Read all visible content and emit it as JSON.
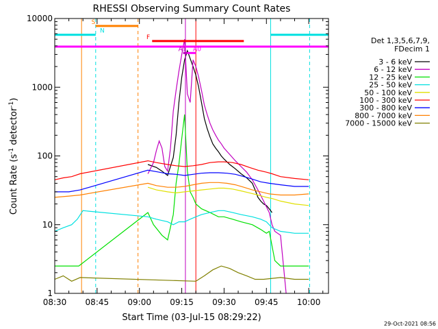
{
  "chart_data": {
    "type": "line",
    "title": "RHESSI Observing Summary Count Rates",
    "xlabel": "Start Time (03-Jul-15 08:29:22)",
    "ylabel_main": "Count Rate (s",
    "ylabel_sup1": "-1",
    "ylabel_mid": " detector",
    "ylabel_sup2": "-1",
    "ylabel_end": ")",
    "x_unit": "minutes after 08:30 UT",
    "xlim": [
      0,
      97
    ],
    "ylim": [
      1,
      10000
    ],
    "y_scale": "log",
    "x_ticks": [
      {
        "label": "08:30",
        "x": 0
      },
      {
        "label": "08:45",
        "x": 15
      },
      {
        "label": "09:00",
        "x": 30
      },
      {
        "label": "09:15",
        "x": 45
      },
      {
        "label": "09:30",
        "x": 60
      },
      {
        "label": "09:45",
        "x": 75
      },
      {
        "label": "10:00",
        "x": 90
      }
    ],
    "y_ticks": [
      {
        "label": "1",
        "y": 1
      },
      {
        "label": "10",
        "y": 10
      },
      {
        "label": "100",
        "y": 100
      },
      {
        "label": "1000",
        "y": 1000
      },
      {
        "label": "10000",
        "y": 10000
      }
    ],
    "legend_position": "top-right",
    "legend_header": [
      "Det 1,3,5,6,7,9,",
      "FDecim 1"
    ],
    "series": [
      {
        "name": "3 - 6 keV",
        "color": "#000000",
        "points": [
          [
            33,
            75
          ],
          [
            36,
            68
          ],
          [
            38,
            60
          ],
          [
            40,
            52
          ],
          [
            42,
            95
          ],
          [
            43,
            200
          ],
          [
            44,
            600
          ],
          [
            45,
            1400
          ],
          [
            46,
            2500
          ],
          [
            47,
            3400
          ],
          [
            48,
            2600
          ],
          [
            49,
            2000
          ],
          [
            50,
            1500
          ],
          [
            51,
            1000
          ],
          [
            52,
            600
          ],
          [
            53,
            350
          ],
          [
            54,
            250
          ],
          [
            55,
            190
          ],
          [
            56,
            150
          ],
          [
            57,
            130
          ],
          [
            58,
            115
          ],
          [
            59,
            100
          ],
          [
            60,
            90
          ],
          [
            62,
            75
          ],
          [
            64,
            65
          ],
          [
            66,
            55
          ],
          [
            68,
            48
          ],
          [
            70,
            40
          ],
          [
            71,
            32
          ],
          [
            72,
            25
          ],
          [
            73,
            22
          ],
          [
            74,
            20
          ],
          [
            75,
            19
          ],
          [
            76,
            17
          ],
          [
            77,
            15
          ]
        ]
      },
      {
        "name": "6 - 12 keV",
        "color": "#c000c0",
        "points": [
          [
            33,
            55
          ],
          [
            35,
            80
          ],
          [
            36,
            120
          ],
          [
            37,
            165
          ],
          [
            38,
            130
          ],
          [
            39,
            70
          ],
          [
            40,
            60
          ],
          [
            41,
            130
          ],
          [
            42,
            450
          ],
          [
            43,
            900
          ],
          [
            44,
            1700
          ],
          [
            45,
            3000
          ],
          [
            46,
            5000
          ],
          [
            47,
            800
          ],
          [
            48,
            600
          ],
          [
            49,
            2500
          ],
          [
            50,
            2000
          ],
          [
            51,
            1400
          ],
          [
            52,
            900
          ],
          [
            53,
            550
          ],
          [
            54,
            400
          ],
          [
            55,
            300
          ],
          [
            56,
            240
          ],
          [
            57,
            200
          ],
          [
            58,
            170
          ],
          [
            59,
            150
          ],
          [
            60,
            130
          ],
          [
            62,
            105
          ],
          [
            64,
            85
          ],
          [
            66,
            70
          ],
          [
            68,
            58
          ],
          [
            70,
            45
          ],
          [
            72,
            32
          ],
          [
            74,
            22
          ],
          [
            76,
            15
          ],
          [
            77,
            10
          ],
          [
            78,
            8
          ],
          [
            80,
            7
          ],
          [
            82,
            1
          ]
        ]
      },
      {
        "name": "12 - 25 keV",
        "color": "#00e000",
        "points": [
          [
            0,
            2.5
          ],
          [
            7,
            2.5
          ],
          [
            8.5,
            2.5
          ],
          [
            33,
            15
          ],
          [
            35,
            10
          ],
          [
            38,
            7
          ],
          [
            40,
            6
          ],
          [
            42,
            14
          ],
          [
            43,
            40
          ],
          [
            44,
            75
          ],
          [
            45,
            180
          ],
          [
            46,
            400
          ],
          [
            47,
            60
          ],
          [
            48,
            30
          ],
          [
            49,
            25
          ],
          [
            50,
            20
          ],
          [
            52,
            17
          ],
          [
            55,
            15
          ],
          [
            58,
            13
          ],
          [
            60,
            13
          ],
          [
            63,
            12
          ],
          [
            66,
            11
          ],
          [
            70,
            10
          ],
          [
            73,
            8.5
          ],
          [
            75,
            7.5
          ],
          [
            76,
            8
          ],
          [
            78,
            3
          ],
          [
            80,
            2.5
          ],
          [
            90,
            2.5
          ]
        ]
      },
      {
        "name": "25 - 50 keV",
        "color": "#00e0e0",
        "points": [
          [
            0,
            8
          ],
          [
            3,
            9
          ],
          [
            6,
            10
          ],
          [
            8,
            12
          ],
          [
            10,
            16
          ],
          [
            33,
            13
          ],
          [
            36,
            12
          ],
          [
            40,
            11
          ],
          [
            42,
            10
          ],
          [
            44,
            11
          ],
          [
            46,
            11
          ],
          [
            48,
            12
          ],
          [
            50,
            13
          ],
          [
            52,
            14
          ],
          [
            55,
            15
          ],
          [
            58,
            16
          ],
          [
            60,
            16
          ],
          [
            63,
            15
          ],
          [
            66,
            14
          ],
          [
            70,
            13
          ],
          [
            73,
            12
          ],
          [
            75,
            11
          ],
          [
            77,
            9
          ],
          [
            80,
            8
          ],
          [
            85,
            7.5
          ],
          [
            90,
            7.5
          ]
        ]
      },
      {
        "name": "50 - 100 keV",
        "color": "#e0e000",
        "points": [
          [
            33,
            35
          ],
          [
            36,
            32
          ],
          [
            40,
            30
          ],
          [
            43,
            29
          ],
          [
            46,
            30
          ],
          [
            49,
            31
          ],
          [
            52,
            32
          ],
          [
            55,
            33
          ],
          [
            58,
            34
          ],
          [
            60,
            34
          ],
          [
            63,
            33
          ],
          [
            66,
            31
          ],
          [
            69,
            29
          ],
          [
            72,
            27
          ],
          [
            75,
            25
          ],
          [
            77,
            24
          ],
          [
            80,
            22
          ],
          [
            85,
            20
          ],
          [
            90,
            19
          ]
        ]
      },
      {
        "name": "100 - 300 keV",
        "color": "#ff0000",
        "points": [
          [
            0,
            45
          ],
          [
            3,
            48
          ],
          [
            6,
            50
          ],
          [
            9,
            55
          ],
          [
            33,
            85
          ],
          [
            36,
            80
          ],
          [
            40,
            75
          ],
          [
            43,
            72
          ],
          [
            46,
            70
          ],
          [
            49,
            72
          ],
          [
            52,
            75
          ],
          [
            55,
            80
          ],
          [
            58,
            82
          ],
          [
            60,
            82
          ],
          [
            63,
            80
          ],
          [
            66,
            75
          ],
          [
            69,
            68
          ],
          [
            72,
            62
          ],
          [
            75,
            58
          ],
          [
            77,
            55
          ],
          [
            80,
            50
          ],
          [
            85,
            47
          ],
          [
            90,
            45
          ]
        ]
      },
      {
        "name": "300 - 800 keV",
        "color": "#0000ff",
        "points": [
          [
            0,
            30
          ],
          [
            5,
            30
          ],
          [
            9,
            32
          ],
          [
            33,
            62
          ],
          [
            37,
            58
          ],
          [
            40,
            55
          ],
          [
            43,
            54
          ],
          [
            46,
            52
          ],
          [
            49,
            54
          ],
          [
            52,
            56
          ],
          [
            55,
            57
          ],
          [
            58,
            57
          ],
          [
            61,
            56
          ],
          [
            64,
            54
          ],
          [
            67,
            50
          ],
          [
            70,
            46
          ],
          [
            73,
            42
          ],
          [
            76,
            40
          ],
          [
            80,
            38
          ],
          [
            85,
            36
          ],
          [
            90,
            36
          ]
        ]
      },
      {
        "name": "800 - 7000 keV",
        "color": "#ff8000",
        "points": [
          [
            0,
            25
          ],
          [
            5,
            26
          ],
          [
            9,
            27
          ],
          [
            33,
            40
          ],
          [
            36,
            37
          ],
          [
            40,
            35
          ],
          [
            43,
            35
          ],
          [
            46,
            36
          ],
          [
            49,
            38
          ],
          [
            52,
            40
          ],
          [
            55,
            41
          ],
          [
            58,
            41
          ],
          [
            61,
            40
          ],
          [
            64,
            38
          ],
          [
            67,
            35
          ],
          [
            70,
            32
          ],
          [
            73,
            30
          ],
          [
            76,
            28
          ],
          [
            80,
            27
          ],
          [
            85,
            27
          ],
          [
            90,
            28
          ]
        ]
      },
      {
        "name": "7000 - 15000 keV",
        "color": "#808000",
        "points": [
          [
            0,
            1.6
          ],
          [
            3,
            1.8
          ],
          [
            6,
            1.5
          ],
          [
            9,
            1.7
          ],
          [
            50,
            1.5
          ],
          [
            53,
            1.8
          ],
          [
            56,
            2.2
          ],
          [
            59,
            2.5
          ],
          [
            62,
            2.3
          ],
          [
            65,
            2.0
          ],
          [
            68,
            1.8
          ],
          [
            71,
            1.6
          ],
          [
            74,
            1.6
          ],
          [
            80,
            1.7
          ],
          [
            85,
            1.6
          ],
          [
            90,
            1.6
          ]
        ]
      }
    ],
    "verticals": [
      {
        "x": 0,
        "color": "#00e0e0",
        "style": "solid"
      },
      {
        "x": 9.5,
        "color": "#ff8000",
        "style": "solid"
      },
      {
        "x": 14.5,
        "color": "#00e0e0",
        "style": "dashed"
      },
      {
        "x": 29.5,
        "color": "#ff8000",
        "style": "dashed"
      },
      {
        "x": 46.3,
        "color": "#c000c0",
        "style": "solid"
      },
      {
        "x": 50,
        "color": "#ff0000",
        "style": "solid"
      },
      {
        "x": 76.5,
        "color": "#00e0e0",
        "style": "solid"
      },
      {
        "x": 90.3,
        "color": "#00e0e0",
        "style": "dashed"
      }
    ],
    "flag_bars": [
      {
        "label": "S",
        "x_start": 14.5,
        "x_end": 29.5,
        "y": 7800,
        "color": "#ff8000",
        "label_x": 13
      },
      {
        "label": "N",
        "x_start": 0,
        "x_end": 14.5,
        "y": 5800,
        "color": "#00e0e0",
        "label_x": 16
      },
      {
        "label": "",
        "x_start": 76.5,
        "x_end": 97,
        "y": 5800,
        "color": "#00e0e0",
        "label_x": 76.5
      },
      {
        "label": "F",
        "x_start": 34.5,
        "x_end": 67,
        "y": 4700,
        "color": "#ff0000",
        "label_x": 32.5
      },
      {
        "label": "",
        "x_start": 0,
        "x_end": 97,
        "y": 3900,
        "color": "#ff00ff",
        "label_x": 0
      },
      {
        "label": "A1",
        "x_start": 45.5,
        "x_end": 47,
        "y": 3150,
        "color": "#c000c0",
        "label_x": 43.8
      },
      {
        "label": "A0",
        "x_start": 47,
        "x_end": 50,
        "y": 3150,
        "color": "#ff00ff",
        "label_x": 49
      }
    ],
    "footer_date": "29-Oct-2021 08:56"
  }
}
